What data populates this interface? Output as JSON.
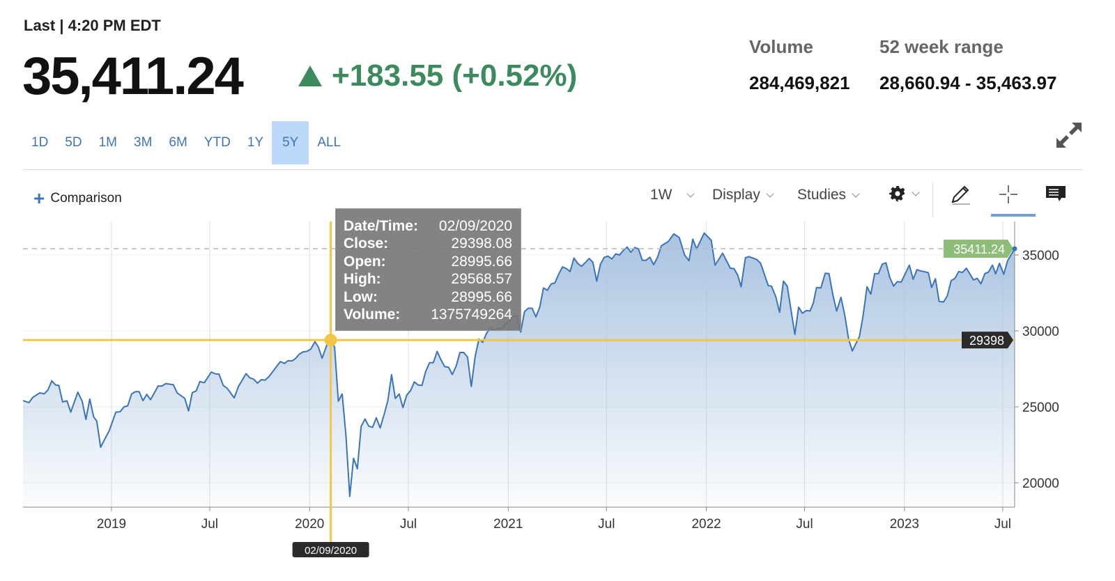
{
  "header": {
    "last_label": "Last | 4:20 PM EDT",
    "price": "35,411.24",
    "change": "+183.55 (+0.52%)",
    "change_direction": "up",
    "change_color": "#3d8a5f",
    "volume_label": "Volume",
    "volume_value": "284,469,821",
    "range_label": "52 week range",
    "range_value": "28,660.94 - 35,463.97"
  },
  "ranges": [
    "1D",
    "5D",
    "1M",
    "3M",
    "6M",
    "YTD",
    "1Y",
    "5Y",
    "ALL"
  ],
  "active_range": "5Y",
  "toolbar": {
    "comparison": "Comparison",
    "interval": "1W",
    "display": "Display",
    "studies": "Studies",
    "icons": [
      "settings-gear-icon",
      "pencil-draw-icon",
      "crosshair-icon",
      "comment-icon",
      "expand-icon"
    ],
    "active_tool": "crosshair"
  },
  "tooltip": {
    "rows": [
      {
        "k": "Date/Time:",
        "v": "02/09/2020"
      },
      {
        "k": "Close:",
        "v": "29398.08"
      },
      {
        "k": "Open:",
        "v": "28995.66"
      },
      {
        "k": "High:",
        "v": "29568.57"
      },
      {
        "k": "Low:",
        "v": "28995.66"
      },
      {
        "k": "Volume:",
        "v": "1375749264"
      }
    ]
  },
  "chart_data": {
    "type": "area",
    "interval": "1W",
    "line_color": "#3a74b8",
    "fill_color": "#a9c3e0",
    "crosshair_color": "#f2c744",
    "last_value_label": "35411.24",
    "last_value_color": "#8dbd78",
    "crosshair": {
      "date": "2020-02-09",
      "value": 29398.08,
      "date_label": "02/09/2020",
      "value_label": "29398"
    },
    "ylim": [
      18500,
      37200
    ],
    "y_ticks": [
      20000,
      25000,
      30000,
      35000
    ],
    "x_ticks": [
      {
        "date": "2019-01-01",
        "label": "2019"
      },
      {
        "date": "2019-07-01",
        "label": "Jul"
      },
      {
        "date": "2020-01-01",
        "label": "2020"
      },
      {
        "date": "2020-07-01",
        "label": "Jul"
      },
      {
        "date": "2021-01-01",
        "label": "2021"
      },
      {
        "date": "2021-07-01",
        "label": "Jul"
      },
      {
        "date": "2022-01-01",
        "label": "2022"
      },
      {
        "date": "2022-07-01",
        "label": "Jul"
      },
      {
        "date": "2023-01-01",
        "label": "2023"
      },
      {
        "date": "2023-07-01",
        "label": "Jul"
      }
    ],
    "grid": true,
    "points": [
      [
        "2018-07-22",
        25410
      ],
      [
        "2018-08-02",
        25280
      ],
      [
        "2018-08-09",
        25620
      ],
      [
        "2018-08-22",
        25920
      ],
      [
        "2018-08-30",
        25860
      ],
      [
        "2018-09-06",
        26110
      ],
      [
        "2018-09-13",
        26710
      ],
      [
        "2018-09-20",
        26440
      ],
      [
        "2018-09-26",
        26410
      ],
      [
        "2018-10-03",
        25320
      ],
      [
        "2018-10-11",
        25400
      ],
      [
        "2018-10-18",
        24650
      ],
      [
        "2018-10-31",
        25970
      ],
      [
        "2018-11-08",
        25370
      ],
      [
        "2018-11-15",
        24170
      ],
      [
        "2018-11-22",
        25520
      ],
      [
        "2018-11-29",
        24350
      ],
      [
        "2018-12-05",
        24050
      ],
      [
        "2018-12-12",
        22340
      ],
      [
        "2018-12-20",
        22900
      ],
      [
        "2018-12-28",
        23430
      ],
      [
        "2019-01-09",
        24650
      ],
      [
        "2019-01-17",
        24680
      ],
      [
        "2019-01-24",
        25000
      ],
      [
        "2019-01-31",
        25070
      ],
      [
        "2019-02-07",
        25850
      ],
      [
        "2019-02-14",
        26000
      ],
      [
        "2019-02-21",
        26000
      ],
      [
        "2019-02-28",
        25410
      ],
      [
        "2019-03-07",
        25820
      ],
      [
        "2019-03-14",
        25470
      ],
      [
        "2019-03-28",
        26370
      ],
      [
        "2019-04-04",
        26370
      ],
      [
        "2019-04-11",
        26530
      ],
      [
        "2019-04-25",
        26460
      ],
      [
        "2019-05-02",
        25920
      ],
      [
        "2019-05-16",
        25560
      ],
      [
        "2019-05-23",
        24730
      ],
      [
        "2019-05-30",
        25940
      ],
      [
        "2019-06-06",
        26040
      ],
      [
        "2019-06-13",
        26670
      ],
      [
        "2019-06-21",
        26590
      ],
      [
        "2019-07-04",
        27290
      ],
      [
        "2019-07-12",
        27160
      ],
      [
        "2019-07-18",
        27160
      ],
      [
        "2019-07-26",
        26410
      ],
      [
        "2019-08-02",
        26230
      ],
      [
        "2019-08-15",
        25590
      ],
      [
        "2019-08-23",
        26340
      ],
      [
        "2019-09-06",
        27190
      ],
      [
        "2019-09-13",
        26910
      ],
      [
        "2019-09-20",
        26820
      ],
      [
        "2019-09-27",
        26560
      ],
      [
        "2019-10-04",
        26790
      ],
      [
        "2019-10-11",
        26760
      ],
      [
        "2019-10-18",
        26980
      ],
      [
        "2019-11-08",
        27980
      ],
      [
        "2019-11-16",
        27860
      ],
      [
        "2019-11-22",
        28030
      ],
      [
        "2019-11-30",
        28030
      ],
      [
        "2019-12-06",
        28180
      ],
      [
        "2019-12-13",
        28470
      ],
      [
        "2019-12-20",
        28620
      ],
      [
        "2019-12-27",
        28650
      ],
      [
        "2020-01-03",
        28800
      ],
      [
        "2020-01-11",
        29290
      ],
      [
        "2020-01-17",
        28950
      ],
      [
        "2020-01-24",
        28200
      ],
      [
        "2020-02-03",
        29180
      ],
      [
        "2020-02-09",
        29398.08
      ],
      [
        "2020-02-16",
        28950
      ],
      [
        "2020-02-23",
        25370
      ],
      [
        "2020-03-01",
        25850
      ],
      [
        "2020-03-08",
        23130
      ],
      [
        "2020-03-15",
        19100
      ],
      [
        "2020-03-22",
        21610
      ],
      [
        "2020-03-29",
        20920
      ],
      [
        "2020-04-05",
        23700
      ],
      [
        "2020-04-12",
        24200
      ],
      [
        "2020-04-19",
        23730
      ],
      [
        "2020-04-26",
        23650
      ],
      [
        "2020-05-03",
        24280
      ],
      [
        "2020-05-10",
        23610
      ],
      [
        "2020-05-17",
        24470
      ],
      [
        "2020-05-24",
        25370
      ],
      [
        "2020-05-31",
        27120
      ],
      [
        "2020-06-07",
        25550
      ],
      [
        "2020-06-14",
        25850
      ],
      [
        "2020-06-21",
        24950
      ],
      [
        "2020-06-28",
        25770
      ],
      [
        "2020-07-05",
        26070
      ],
      [
        "2020-07-12",
        26640
      ],
      [
        "2020-07-19",
        26440
      ],
      [
        "2020-07-26",
        26410
      ],
      [
        "2020-08-02",
        27340
      ],
      [
        "2020-08-09",
        27910
      ],
      [
        "2020-08-16",
        27910
      ],
      [
        "2020-08-23",
        28650
      ],
      [
        "2020-08-30",
        28100
      ],
      [
        "2020-09-06",
        27640
      ],
      [
        "2020-09-13",
        27610
      ],
      [
        "2020-09-20",
        27130
      ],
      [
        "2020-09-27",
        27680
      ],
      [
        "2020-10-04",
        28580
      ],
      [
        "2020-10-11",
        28580
      ],
      [
        "2020-10-18",
        28280
      ],
      [
        "2020-10-25",
        26340
      ],
      [
        "2020-11-01",
        28310
      ],
      [
        "2020-11-08",
        29470
      ],
      [
        "2020-11-15",
        29250
      ],
      [
        "2020-11-22",
        29850
      ],
      [
        "2020-11-29",
        30180
      ],
      [
        "2020-12-06",
        30030
      ],
      [
        "2020-12-13",
        30180
      ],
      [
        "2020-12-20",
        30180
      ],
      [
        "2020-12-27",
        30440
      ],
      [
        "2021-01-03",
        30670
      ],
      [
        "2021-01-10",
        30970
      ],
      [
        "2021-01-17",
        30970
      ],
      [
        "2021-01-24",
        29920
      ],
      [
        "2021-01-31",
        31270
      ],
      [
        "2021-02-07",
        31490
      ],
      [
        "2021-02-14",
        31490
      ],
      [
        "2021-02-21",
        30920
      ],
      [
        "2021-02-28",
        31560
      ],
      [
        "2021-03-07",
        32830
      ],
      [
        "2021-03-14",
        32680
      ],
      [
        "2021-03-21",
        33090
      ],
      [
        "2021-03-28",
        33160
      ],
      [
        "2021-04-04",
        33730
      ],
      [
        "2021-04-11",
        34220
      ],
      [
        "2021-04-18",
        34100
      ],
      [
        "2021-04-25",
        33910
      ],
      [
        "2021-05-02",
        34800
      ],
      [
        "2021-05-09",
        34450
      ],
      [
        "2021-05-16",
        34250
      ],
      [
        "2021-05-23",
        34500
      ],
      [
        "2021-05-30",
        34770
      ],
      [
        "2021-06-06",
        34510
      ],
      [
        "2021-06-13",
        33280
      ],
      [
        "2021-06-20",
        34400
      ],
      [
        "2021-06-27",
        34850
      ],
      [
        "2021-07-04",
        34920
      ],
      [
        "2021-07-11",
        34740
      ],
      [
        "2021-07-18",
        35070
      ],
      [
        "2021-07-25",
        35000
      ],
      [
        "2021-08-01",
        35300
      ],
      [
        "2021-08-08",
        35520
      ],
      [
        "2021-08-15",
        35180
      ],
      [
        "2021-08-22",
        35490
      ],
      [
        "2021-08-29",
        35400
      ],
      [
        "2021-09-05",
        34650
      ],
      [
        "2021-09-12",
        34650
      ],
      [
        "2021-09-19",
        34850
      ],
      [
        "2021-09-26",
        34360
      ],
      [
        "2021-10-03",
        34850
      ],
      [
        "2021-10-10",
        35600
      ],
      [
        "2021-10-23",
        35890
      ],
      [
        "2021-11-02",
        36390
      ],
      [
        "2021-11-12",
        36150
      ],
      [
        "2021-11-22",
        35000
      ],
      [
        "2021-11-30",
        34620
      ],
      [
        "2021-12-07",
        36040
      ],
      [
        "2021-12-14",
        35400
      ],
      [
        "2021-12-28",
        36450
      ],
      [
        "2022-01-10",
        35970
      ],
      [
        "2022-01-17",
        34330
      ],
      [
        "2022-01-31",
        35120
      ],
      [
        "2022-02-14",
        34130
      ],
      [
        "2022-02-21",
        34100
      ],
      [
        "2022-02-28",
        33650
      ],
      [
        "2022-03-06",
        32910
      ],
      [
        "2022-03-14",
        34820
      ],
      [
        "2022-03-21",
        34890
      ],
      [
        "2022-04-04",
        34700
      ],
      [
        "2022-04-11",
        34450
      ],
      [
        "2022-04-25",
        32980
      ],
      [
        "2022-05-01",
        32950
      ],
      [
        "2022-05-09",
        32240
      ],
      [
        "2022-05-16",
        31220
      ],
      [
        "2022-05-23",
        33280
      ],
      [
        "2022-05-30",
        32940
      ],
      [
        "2022-06-13",
        29770
      ],
      [
        "2022-06-20",
        31560
      ],
      [
        "2022-06-27",
        31160
      ],
      [
        "2022-07-04",
        31340
      ],
      [
        "2022-07-11",
        31310
      ],
      [
        "2022-07-17",
        31820
      ],
      [
        "2022-07-23",
        32860
      ],
      [
        "2022-07-31",
        32830
      ],
      [
        "2022-08-08",
        33800
      ],
      [
        "2022-08-15",
        33770
      ],
      [
        "2022-08-22",
        32390
      ],
      [
        "2022-08-29",
        31310
      ],
      [
        "2022-09-06",
        32210
      ],
      [
        "2022-09-13",
        31040
      ],
      [
        "2022-09-20",
        29470
      ],
      [
        "2022-09-27",
        28680
      ],
      [
        "2022-10-03",
        29130
      ],
      [
        "2022-10-10",
        29620
      ],
      [
        "2022-10-17",
        31040
      ],
      [
        "2022-10-24",
        32910
      ],
      [
        "2022-10-31",
        32420
      ],
      [
        "2022-11-07",
        33770
      ],
      [
        "2022-11-14",
        33770
      ],
      [
        "2022-11-21",
        34400
      ],
      [
        "2022-11-28",
        34480
      ],
      [
        "2022-12-05",
        33510
      ],
      [
        "2022-12-12",
        32950
      ],
      [
        "2022-12-19",
        33250
      ],
      [
        "2022-12-26",
        33210
      ],
      [
        "2023-01-10",
        34330
      ],
      [
        "2023-01-17",
        33400
      ],
      [
        "2023-01-24",
        34030
      ],
      [
        "2023-01-31",
        33950
      ],
      [
        "2023-02-07",
        33900
      ],
      [
        "2023-02-14",
        33830
      ],
      [
        "2023-02-20",
        32860
      ],
      [
        "2023-02-27",
        33430
      ],
      [
        "2023-03-06",
        31940
      ],
      [
        "2023-03-14",
        31910
      ],
      [
        "2023-03-21",
        32310
      ],
      [
        "2023-03-28",
        33310
      ],
      [
        "2023-04-04",
        33460
      ],
      [
        "2023-04-11",
        33910
      ],
      [
        "2023-04-18",
        33850
      ],
      [
        "2023-04-25",
        34130
      ],
      [
        "2023-05-02",
        33730
      ],
      [
        "2023-05-08",
        33360
      ],
      [
        "2023-05-15",
        33460
      ],
      [
        "2023-05-22",
        33100
      ],
      [
        "2023-05-29",
        33770
      ],
      [
        "2023-06-05",
        33880
      ],
      [
        "2023-06-12",
        34330
      ],
      [
        "2023-06-18",
        33760
      ],
      [
        "2023-06-25",
        34450
      ],
      [
        "2023-07-03",
        33730
      ],
      [
        "2023-07-10",
        34620
      ],
      [
        "2023-07-23",
        35411.24
      ]
    ]
  }
}
